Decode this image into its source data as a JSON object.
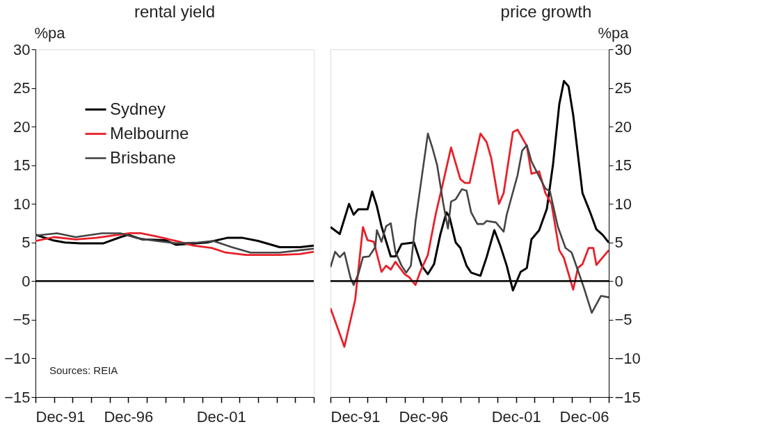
{
  "chart_data": [
    {
      "type": "line",
      "title": "rental yield",
      "ylabel": "%pa",
      "xlim": [
        "1991-12",
        "2006-12"
      ],
      "xticks": [
        {
          "value": "1991-12",
          "label": "Dec-91"
        },
        {
          "value": "1992-12",
          "label": null
        },
        {
          "value": "1993-12",
          "label": null
        },
        {
          "value": "1994-12",
          "label": null
        },
        {
          "value": "1995-12",
          "label": null
        },
        {
          "value": "1996-12",
          "label": "Dec-96"
        },
        {
          "value": "1997-12",
          "label": null
        },
        {
          "value": "1998-12",
          "label": null
        },
        {
          "value": "1999-12",
          "label": null
        },
        {
          "value": "2000-12",
          "label": null
        },
        {
          "value": "2001-12",
          "label": "Dec-01"
        },
        {
          "value": "2002-12",
          "label": null
        },
        {
          "value": "2003-12",
          "label": null
        },
        {
          "value": "2004-12",
          "label": null
        },
        {
          "value": "2005-12",
          "label": null
        },
        {
          "value": "2006-12",
          "label": null
        }
      ],
      "ylim": [
        -15,
        30
      ],
      "yticks": [
        -15,
        -10,
        -5,
        0,
        5,
        10,
        15,
        20,
        25,
        30
      ],
      "legend": "top left",
      "grid": false,
      "ref_lines": [
        {
          "axis": "y",
          "value": 0,
          "color": "#000000"
        }
      ],
      "annotations": [
        "Sources: REIA"
      ],
      "series": [
        {
          "name": "Sydney",
          "color": "#000000",
          "x": [
            "1991-12",
            "1992-11",
            "1993-07",
            "1994-05",
            "1995-08",
            "1996-07",
            "1996-12",
            "1997-09",
            "1998-12",
            "1999-07",
            "2001-03",
            "2002-04",
            "2003-02",
            "2003-12",
            "2005-02",
            "2006-03",
            "2006-12"
          ],
          "values": [
            6.0,
            5.3,
            5.0,
            4.9,
            4.9,
            5.7,
            6.0,
            5.4,
            5.3,
            4.7,
            5.0,
            5.6,
            5.6,
            5.2,
            4.4,
            4.4,
            4.6
          ]
        },
        {
          "name": "Melbourne",
          "color": "#e8202a",
          "x": [
            "1991-12",
            "1992-12",
            "1994-02",
            "1995-03",
            "1997-01",
            "1997-08",
            "1998-06",
            "1999-07",
            "2000-06",
            "2001-06",
            "2002-03",
            "2003-04",
            "2005-02",
            "2006-03",
            "2006-12"
          ],
          "values": [
            5.2,
            5.7,
            5.4,
            5.6,
            6.2,
            6.2,
            5.8,
            5.2,
            4.6,
            4.3,
            3.7,
            3.4,
            3.4,
            3.5,
            3.8
          ]
        },
        {
          "name": "Brisbane",
          "color": "#444444",
          "x": [
            "1991-12",
            "1993-02",
            "1994-02",
            "1995-07",
            "1996-07",
            "1997-05",
            "1998-06",
            "1999-07",
            "2000-09",
            "2001-07",
            "2002-07",
            "2003-07",
            "2005-02",
            "2006-03",
            "2006-12"
          ],
          "values": [
            5.9,
            6.2,
            5.7,
            6.2,
            6.2,
            5.6,
            5.2,
            4.9,
            5.0,
            5.2,
            4.4,
            3.7,
            3.7,
            4.0,
            4.2
          ]
        }
      ]
    },
    {
      "type": "line",
      "title": "price growth",
      "ylabel": "%pa",
      "xlim": [
        "1991-12",
        "2006-12"
      ],
      "xticks": [
        {
          "value": "1991-12",
          "label": "Dec-91"
        },
        {
          "value": "1992-12",
          "label": null
        },
        {
          "value": "1993-12",
          "label": null
        },
        {
          "value": "1994-12",
          "label": null
        },
        {
          "value": "1995-12",
          "label": null
        },
        {
          "value": "1996-12",
          "label": "Dec-96"
        },
        {
          "value": "1997-12",
          "label": null
        },
        {
          "value": "1998-12",
          "label": null
        },
        {
          "value": "1999-12",
          "label": null
        },
        {
          "value": "2000-12",
          "label": null
        },
        {
          "value": "2001-12",
          "label": "Dec-01"
        },
        {
          "value": "2002-12",
          "label": null
        },
        {
          "value": "2003-12",
          "label": null
        },
        {
          "value": "2004-12",
          "label": null
        },
        {
          "value": "2005-12",
          "label": null
        },
        {
          "value": "2006-12",
          "label": "Dec-06"
        }
      ],
      "ylim": [
        -15,
        30
      ],
      "yticks": [
        -15,
        -10,
        -5,
        0,
        5,
        10,
        15,
        20,
        25,
        30
      ],
      "grid": false,
      "ref_lines": [
        {
          "axis": "y",
          "value": 0,
          "color": "#000000"
        }
      ],
      "series": [
        {
          "color": "#000000",
          "x": [
            "1991-12",
            "1992-06",
            "1992-12",
            "1993-03",
            "1993-06",
            "1993-12",
            "1994-03",
            "1994-06",
            "1994-09",
            "1995-03",
            "1995-06",
            "1995-10",
            "1996-06",
            "1996-11",
            "1997-03",
            "1997-07",
            "1997-11",
            "1998-03",
            "1998-05",
            "1998-09",
            "1998-12",
            "1999-04",
            "1999-07",
            "2000-01",
            "2000-05",
            "2000-10",
            "2001-02",
            "2001-06",
            "2001-10",
            "2002-03",
            "2002-07",
            "2002-10",
            "2003-03",
            "2003-08",
            "2003-12",
            "2004-04",
            "2004-07",
            "2004-10",
            "2005-01",
            "2005-07",
            "2005-12",
            "2006-04",
            "2006-08",
            "2006-12"
          ],
          "values": [
            7.0,
            6.1,
            10.0,
            8.6,
            9.3,
            9.3,
            11.6,
            9.7,
            7.1,
            3.2,
            3.2,
            4.8,
            5.0,
            2.0,
            0.9,
            2.2,
            6.0,
            8.9,
            8.3,
            5.0,
            4.3,
            2.0,
            1.1,
            0.7,
            3.1,
            6.6,
            4.5,
            2.0,
            -1.2,
            1.2,
            1.7,
            5.4,
            6.6,
            9.4,
            15.2,
            22.9,
            25.9,
            25.2,
            21.5,
            11.4,
            8.9,
            6.7,
            6.0,
            5.0
          ]
        },
        {
          "color": "#e8202a",
          "x": [
            "1991-12",
            "1992-09",
            "1993-04",
            "1993-09",
            "1993-12",
            "1994-04",
            "1994-09",
            "1994-12",
            "1995-03",
            "1995-06",
            "1995-12",
            "1996-03",
            "1996-07",
            "1996-10",
            "1997-03",
            "1997-08",
            "1998-01",
            "1998-06",
            "1998-12",
            "1999-03",
            "1999-06",
            "2000-01",
            "2000-05",
            "2000-08",
            "2001-01",
            "2001-04",
            "2001-10",
            "2002-01",
            "2002-07",
            "2002-10",
            "2003-03",
            "2003-07",
            "2003-11",
            "2004-04",
            "2004-07",
            "2005-01",
            "2005-04",
            "2005-07",
            "2005-11",
            "2006-02",
            "2006-04",
            "2006-12"
          ],
          "values": [
            -3.5,
            -8.5,
            -2.4,
            7.0,
            5.3,
            5.1,
            1.2,
            2.0,
            1.5,
            2.5,
            0.9,
            0.5,
            -0.5,
            1.2,
            3.4,
            8.6,
            12.9,
            17.3,
            13.2,
            12.7,
            12.7,
            19.1,
            18.0,
            15.9,
            10.0,
            11.4,
            19.3,
            19.6,
            17.5,
            13.9,
            14.2,
            11.4,
            10.0,
            4.0,
            3.0,
            -1.1,
            1.7,
            2.2,
            4.3,
            4.3,
            2.1,
            4.0
          ]
        },
        {
          "color": "#444444",
          "x": [
            "1991-12",
            "1992-03",
            "1992-06",
            "1992-09",
            "1993-01",
            "1993-03",
            "1993-06",
            "1993-09",
            "1994-01",
            "1994-05",
            "1994-06",
            "1994-09",
            "1994-12",
            "1995-03",
            "1995-06",
            "1995-10",
            "1996-01",
            "1996-04",
            "1996-07",
            "1996-11",
            "1997-03",
            "1997-06",
            "1997-09",
            "1998-01",
            "1998-04",
            "1998-06",
            "1998-09",
            "1999-01",
            "1999-04",
            "1999-07",
            "1999-11",
            "2000-03",
            "2000-05",
            "2000-11",
            "2001-04",
            "2001-06",
            "2002-01",
            "2002-04",
            "2002-07",
            "2002-10",
            "2003-01",
            "2003-07",
            "2003-10",
            "2004-03",
            "2004-08",
            "2004-12",
            "2005-04",
            "2005-08",
            "2006-01",
            "2006-07",
            "2006-12"
          ],
          "values": [
            1.8,
            3.8,
            3.1,
            3.7,
            0.4,
            -0.5,
            0.9,
            3.1,
            3.2,
            4.4,
            6.6,
            5.1,
            7.1,
            7.5,
            3.8,
            2.0,
            1.1,
            2.0,
            7.7,
            13.4,
            19.1,
            17.2,
            15.0,
            10.0,
            6.8,
            10.3,
            10.6,
            11.9,
            11.7,
            8.9,
            7.4,
            7.4,
            7.8,
            7.6,
            6.4,
            8.6,
            13.7,
            16.9,
            17.6,
            15.5,
            14.3,
            12.0,
            11.6,
            7.1,
            4.3,
            3.7,
            1.4,
            -0.9,
            -4.1,
            -1.9,
            -2.1
          ]
        }
      ]
    }
  ]
}
